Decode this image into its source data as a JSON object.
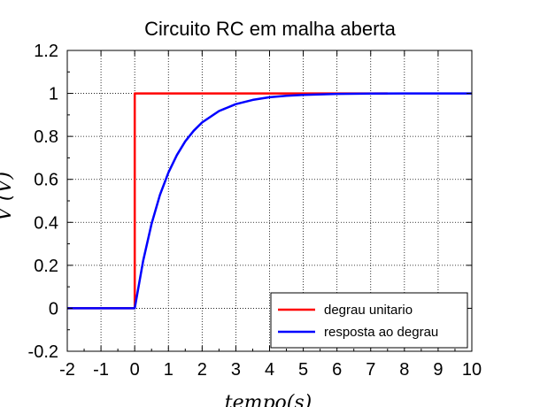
{
  "chart_data": {
    "type": "line",
    "title": "Circuito RC em malha aberta",
    "xlabel": "tempo(s)",
    "ylabel": "V (V)",
    "xlim": [
      -2,
      10
    ],
    "ylim": [
      -0.2,
      1.2
    ],
    "xticks": [
      "-2",
      "-1",
      "0",
      "1",
      "2",
      "3",
      "4",
      "5",
      "6",
      "7",
      "8",
      "9",
      "10"
    ],
    "yticks": [
      "-0.2",
      "0",
      "0.2",
      "0.4",
      "0.6",
      "0.8",
      "1",
      "1.2"
    ],
    "grid": true,
    "legend_position": "bottom-right",
    "series": [
      {
        "name": "degrau unitario",
        "color": "#ff0000",
        "x": [
          -2,
          0,
          0,
          7.5
        ],
        "y": [
          0,
          0,
          1,
          1
        ]
      },
      {
        "name": "resposta ao degrau",
        "color": "#0000ff",
        "x": [
          -2,
          0,
          0.25,
          0.5,
          0.75,
          1,
          1.25,
          1.5,
          1.75,
          2,
          2.5,
          3,
          3.5,
          4,
          4.5,
          5,
          6,
          7,
          8,
          9,
          10
        ],
        "y": [
          0,
          0,
          0.221,
          0.393,
          0.528,
          0.632,
          0.713,
          0.777,
          0.826,
          0.865,
          0.918,
          0.95,
          0.97,
          0.982,
          0.989,
          0.993,
          0.998,
          0.999,
          1.0,
          1.0,
          1.0
        ]
      }
    ]
  }
}
